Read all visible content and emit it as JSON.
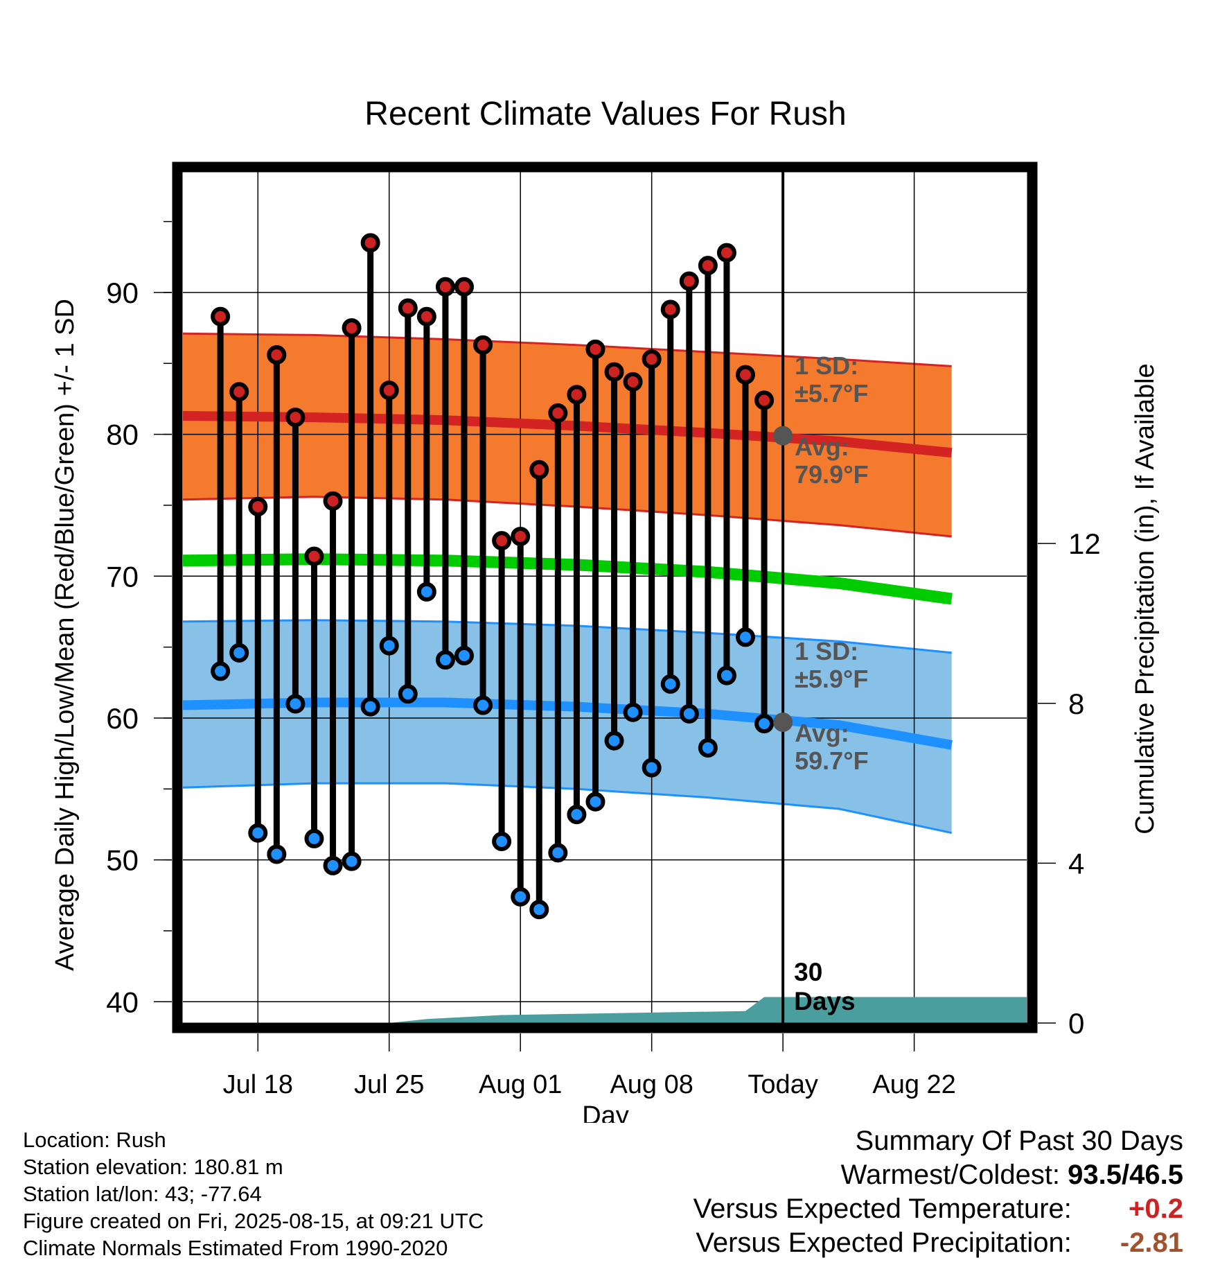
{
  "chart_data": {
    "type": "line",
    "title": "Recent Climate Values For Rush",
    "xlabel": "Day",
    "ylabel": "Average Daily High/Low/Mean (Red/Blue/Green) +/- 1 SD",
    "y2label": "Cumulative Precipitation (in), If Available",
    "ylim": [
      38.5,
      98.5
    ],
    "y2lim": [
      0,
      21.3
    ],
    "xlim": [
      "2025-07-14",
      "2025-08-28"
    ],
    "y_ticks": [
      40,
      50,
      60,
      70,
      80,
      90
    ],
    "y2_ticks": [
      0,
      4,
      8,
      12
    ],
    "x_ticks": [
      {
        "date": "2025-07-18",
        "label": "Jul 18"
      },
      {
        "date": "2025-07-25",
        "label": "Jul 25"
      },
      {
        "date": "2025-08-01",
        "label": "Aug 01"
      },
      {
        "date": "2025-08-08",
        "label": "Aug 08"
      },
      {
        "date": "2025-08-15",
        "label": "Today"
      },
      {
        "date": "2025-08-22",
        "label": "Aug 22"
      }
    ],
    "grid": true,
    "today": "2025-08-15",
    "window_label": "30 Days",
    "normals_dates": [
      "2025-07-14",
      "2025-07-21",
      "2025-07-28",
      "2025-08-04",
      "2025-08-11",
      "2025-08-18",
      "2025-08-24"
    ],
    "normal_high": [
      81.3,
      81.2,
      81.0,
      80.6,
      80.1,
      79.5,
      78.7
    ],
    "normal_high_upper": [
      87.1,
      87.0,
      86.7,
      86.3,
      85.8,
      85.3,
      84.8
    ],
    "normal_high_lower": [
      75.4,
      75.6,
      75.4,
      74.9,
      74.3,
      73.6,
      72.8
    ],
    "normal_mean": [
      71.1,
      71.2,
      71.1,
      70.8,
      70.3,
      69.5,
      68.4
    ],
    "normal_low": [
      60.9,
      61.1,
      61.1,
      60.8,
      60.3,
      59.5,
      58.1
    ],
    "normal_low_upper": [
      66.8,
      66.9,
      66.8,
      66.5,
      66.0,
      65.4,
      64.6
    ],
    "normal_low_lower": [
      55.1,
      55.4,
      55.4,
      55.0,
      54.4,
      53.6,
      51.9
    ],
    "today_high_label": [
      "Avg:",
      "79.9°F"
    ],
    "today_high_value": 79.9,
    "today_low_label": [
      "Avg:",
      "59.7°F"
    ],
    "today_low_value": 59.7,
    "high_sd_label": [
      "1 SD:",
      "±5.7°F"
    ],
    "low_sd_label": [
      "1 SD:",
      "±5.9°F"
    ],
    "days": [
      "2025-07-16",
      "2025-07-17",
      "2025-07-18",
      "2025-07-19",
      "2025-07-20",
      "2025-07-21",
      "2025-07-22",
      "2025-07-23",
      "2025-07-24",
      "2025-07-25",
      "2025-07-26",
      "2025-07-27",
      "2025-07-28",
      "2025-07-29",
      "2025-07-30",
      "2025-07-31",
      "2025-08-01",
      "2025-08-02",
      "2025-08-03",
      "2025-08-04",
      "2025-08-05",
      "2025-08-06",
      "2025-08-07",
      "2025-08-08",
      "2025-08-09",
      "2025-08-10",
      "2025-08-11",
      "2025-08-12",
      "2025-08-13",
      "2025-08-14"
    ],
    "series": [
      {
        "name": "High",
        "color": "#cc2222",
        "values": [
          88.3,
          83.0,
          74.9,
          85.6,
          81.2,
          71.4,
          75.3,
          87.5,
          93.5,
          83.1,
          88.9,
          88.3,
          90.4,
          90.4,
          86.3,
          72.5,
          72.8,
          77.5,
          81.5,
          82.8,
          86.0,
          84.4,
          83.7,
          85.3,
          88.8,
          90.8,
          91.9,
          92.8,
          84.2,
          82.4
        ]
      },
      {
        "name": "Low",
        "color": "#1e90ff",
        "values": [
          63.3,
          64.6,
          51.9,
          50.4,
          61.0,
          51.5,
          49.6,
          49.9,
          60.8,
          65.1,
          61.7,
          68.9,
          64.1,
          64.4,
          60.9,
          51.3,
          47.4,
          46.5,
          50.5,
          53.2,
          54.1,
          58.4,
          60.4,
          56.5,
          62.4,
          60.3,
          57.9,
          63.0,
          65.7,
          59.6
        ]
      }
    ],
    "precip": {
      "dates": [
        "2025-07-14",
        "2025-07-23",
        "2025-07-25",
        "2025-07-27",
        "2025-07-31",
        "2025-08-13",
        "2025-08-14",
        "2025-08-28"
      ],
      "values": [
        0.0,
        0.0,
        0.0,
        0.1,
        0.2,
        0.3,
        0.65,
        0.65
      ]
    },
    "colors": {
      "high_band": "#f47a2e",
      "high_line": "#d42323",
      "low_band": "#87c1e8",
      "low_line": "#1e90ff",
      "mean_line": "#00cc00",
      "precip": "#4a9e9e",
      "annotation": "#555555"
    }
  },
  "footer": {
    "location": "Location: Rush",
    "elevation": "Station elevation: 180.81 m",
    "latlon": "Station lat/lon: 43; -77.64",
    "created": "Figure created on Fri, 2025-08-15, at 09:21 UTC",
    "normals": "Climate Normals Estimated From 1990-2020"
  },
  "summary": {
    "title": "Summary Of Past 30 Days",
    "warm_cold_label": "Warmest/Coldest:",
    "warm_cold_value": "93.5/46.5",
    "temp_label": "Versus Expected Temperature:",
    "temp_value": "+0.2",
    "temp_color": "#cc2222",
    "precip_label": "Versus Expected Precipitation:",
    "precip_value": "-2.81",
    "precip_color": "#a0522d"
  }
}
